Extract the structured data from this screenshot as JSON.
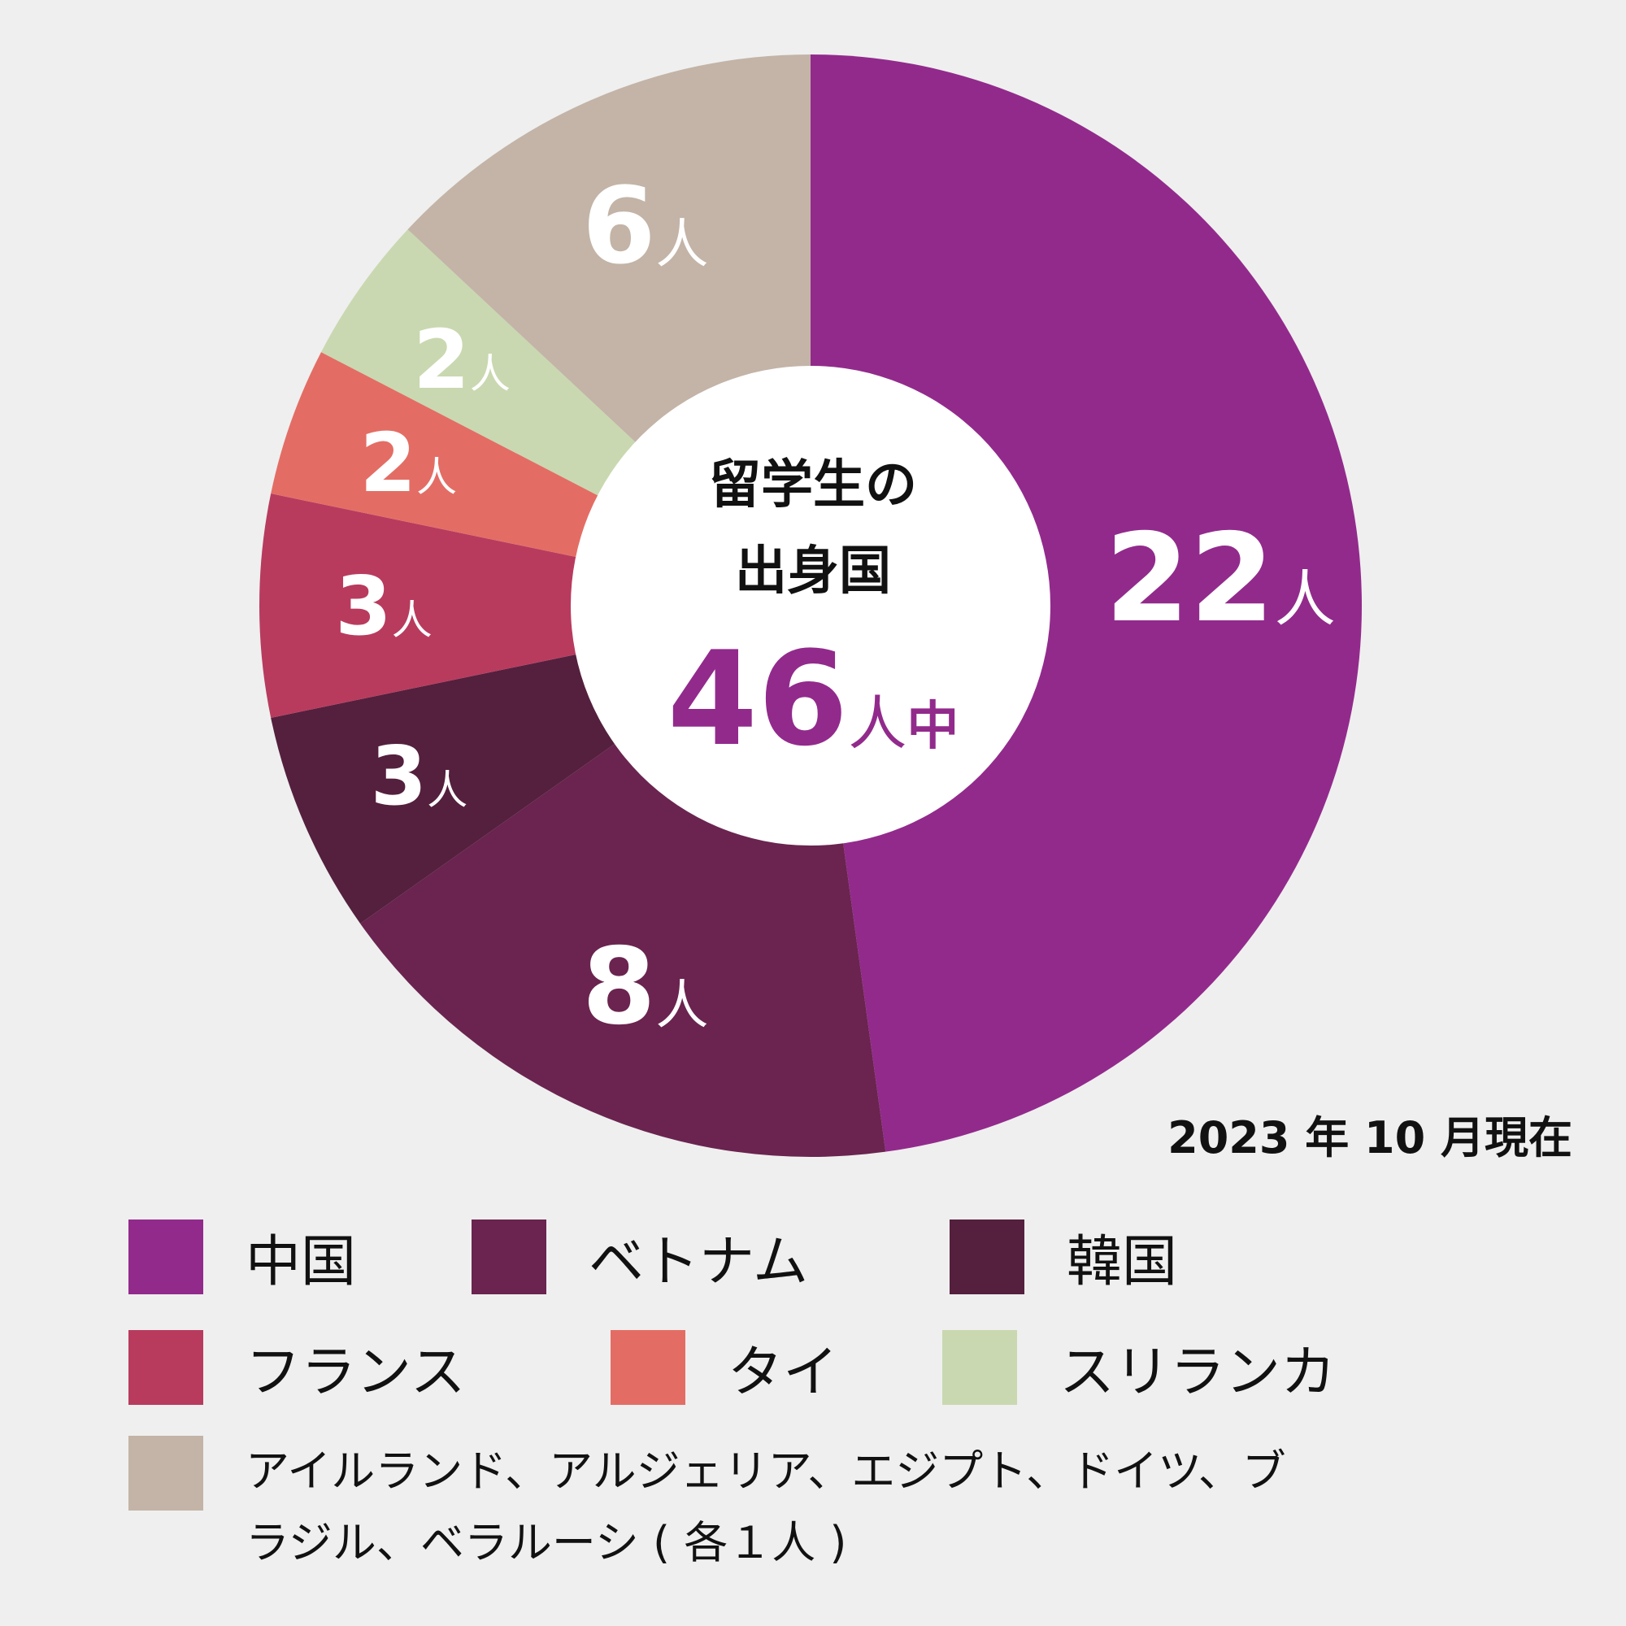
{
  "chart_data": {
    "type": "pie",
    "style": "donut",
    "center": {
      "title_line1": "留学生の",
      "title_line2": "出身国",
      "total": "46",
      "unit": "人",
      "suffix": "中"
    },
    "slices": [
      {
        "name": "中国",
        "value": 22,
        "label": "22",
        "unit": "人",
        "color": "#922a8c"
      },
      {
        "name": "ベトナム",
        "value": 8,
        "label": "8",
        "unit": "人",
        "color": "#6a244f"
      },
      {
        "name": "韓国",
        "value": 3,
        "label": "3",
        "unit": "人",
        "color": "#54203e"
      },
      {
        "name": "フランス",
        "value": 3,
        "label": "3",
        "unit": "人",
        "color": "#b83b5e"
      },
      {
        "name": "タイ",
        "value": 2,
        "label": "2",
        "unit": "人",
        "color": "#e36d64"
      },
      {
        "name": "スリランカ",
        "value": 2,
        "label": "2",
        "unit": "人",
        "color": "#c9d8b0"
      },
      {
        "name": "アイルランド、アルジェリア、エジプト、ドイツ、ブラジル、ベラルーシ（各１人）",
        "value": 6,
        "label": "6",
        "unit": "人",
        "color": "#c3b4a7"
      }
    ]
  },
  "as_of": "2023 年 10 月現在",
  "legend": {
    "items": [
      {
        "label": "中国",
        "color": "#922a8c"
      },
      {
        "label": "ベトナム",
        "color": "#6a244f"
      },
      {
        "label": "韓国",
        "color": "#54203e"
      },
      {
        "label": "フランス",
        "color": "#b83b5e"
      },
      {
        "label": "タイ",
        "color": "#e36d64"
      },
      {
        "label": "スリランカ",
        "color": "#c9d8b0"
      }
    ],
    "other_label": "アイルランド、アルジェリア、エジプト、ドイツ、ブラジル、ベラルーシ ( 各１人 )",
    "other_color": "#c3b4a7"
  }
}
